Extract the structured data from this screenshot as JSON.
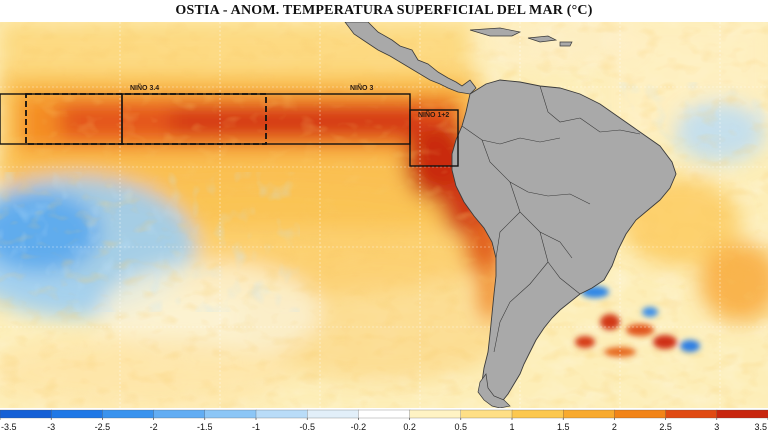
{
  "title": "OSTIA - ANOM. TEMPERATURA SUPERFICIAL DEL MAR (°C)",
  "regions": {
    "nino34": "NIÑO 3.4",
    "nino3": "NIÑO 3",
    "nino12": "NIÑO 1+2"
  },
  "colorbar": {
    "ticks": [
      "-3.5",
      "-3",
      "-2.5",
      "-2",
      "-1.5",
      "-1",
      "-0.5",
      "-0.2",
      "0.2",
      "0.5",
      "1",
      "1.5",
      "2",
      "2.5",
      "3",
      "3.5"
    ],
    "colors": [
      "#1560d6",
      "#1f78e6",
      "#3a93ee",
      "#62adf3",
      "#8cc6f6",
      "#b9dcf8",
      "#e2eff9",
      "#ffffff",
      "#fff3c4",
      "#fedf86",
      "#fcc84f",
      "#f8aa2e",
      "#f28418",
      "#e04a12",
      "#c8260e"
    ]
  },
  "colors": {
    "land": "#a9a9a9",
    "coast": "#3b3b3b",
    "grid": "#ffffff",
    "box": "#111111"
  }
}
